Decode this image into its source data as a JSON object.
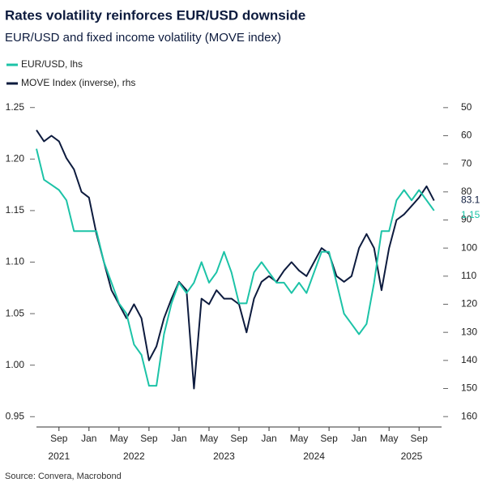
{
  "chart_data": {
    "type": "line",
    "title": "Rates volatility reinforces EUR/USD downside",
    "subtitle": "EUR/USD and fixed income volatility (MOVE index)",
    "source": "Source: Convera, Macrobond",
    "x": [
      "2021-06",
      "2021-07",
      "2021-08",
      "2021-09",
      "2021-10",
      "2021-11",
      "2021-12",
      "2022-01",
      "2022-02",
      "2022-03",
      "2022-04",
      "2022-05",
      "2022-06",
      "2022-07",
      "2022-08",
      "2022-09",
      "2022-10",
      "2022-11",
      "2022-12",
      "2023-01",
      "2023-02",
      "2023-03",
      "2023-04",
      "2023-05",
      "2023-06",
      "2023-07",
      "2023-08",
      "2023-09",
      "2023-10",
      "2023-11",
      "2023-12",
      "2024-01",
      "2024-02",
      "2024-03",
      "2024-04",
      "2024-05",
      "2024-06",
      "2024-07",
      "2024-08",
      "2024-09",
      "2024-10",
      "2024-11",
      "2024-12",
      "2025-01",
      "2025-02",
      "2025-03",
      "2025-04",
      "2025-05",
      "2025-06",
      "2025-07",
      "2025-08",
      "2025-09",
      "2025-10",
      "2025-11"
    ],
    "xlim": [
      "2021-06",
      "2025-12"
    ],
    "xticks": [
      {
        "value": "2021-09",
        "label": "Sep"
      },
      {
        "value": "2022-01",
        "label": "Jan"
      },
      {
        "value": "2022-05",
        "label": "May"
      },
      {
        "value": "2022-09",
        "label": "Sep"
      },
      {
        "value": "2023-01",
        "label": "Jan"
      },
      {
        "value": "2023-05",
        "label": "May"
      },
      {
        "value": "2023-09",
        "label": "Sep"
      },
      {
        "value": "2024-01",
        "label": "Jan"
      },
      {
        "value": "2024-05",
        "label": "May"
      },
      {
        "value": "2024-09",
        "label": "Sep"
      },
      {
        "value": "2025-01",
        "label": "Jan"
      },
      {
        "value": "2025-05",
        "label": "May"
      },
      {
        "value": "2025-09",
        "label": "Sep"
      }
    ],
    "year_labels": [
      {
        "value": "2021-09",
        "label": "2021"
      },
      {
        "value": "2022-07",
        "label": "2022"
      },
      {
        "value": "2023-07",
        "label": "2023"
      },
      {
        "value": "2024-07",
        "label": "2024"
      },
      {
        "value": "2025-08",
        "label": "2025"
      }
    ],
    "ylim": [
      0.94,
      1.26
    ],
    "yticks": [
      0.95,
      {
        "value": 1.0,
        "label": "1.00"
      },
      1.05,
      {
        "value": 1.1,
        "label": "1.10"
      },
      1.15,
      {
        "value": 1.2,
        "label": "1.20"
      },
      1.25
    ],
    "y2lim": [
      46.3,
      163.7
    ],
    "y2_inverted": true,
    "y2ticks": [
      50,
      60,
      70,
      80,
      90,
      100,
      110,
      120,
      130,
      140,
      150,
      160
    ],
    "legend": "top-left",
    "series": [
      {
        "name": "EUR/USD, lhs",
        "color": "#1cc3a7",
        "axis": "y",
        "values": [
          1.21,
          1.18,
          1.175,
          1.17,
          1.16,
          1.13,
          1.13,
          1.13,
          1.13,
          1.1,
          1.08,
          1.06,
          1.05,
          1.02,
          1.01,
          0.98,
          0.98,
          1.03,
          1.06,
          1.08,
          1.07,
          1.08,
          1.1,
          1.08,
          1.09,
          1.11,
          1.09,
          1.06,
          1.06,
          1.09,
          1.1,
          1.09,
          1.08,
          1.08,
          1.07,
          1.08,
          1.07,
          1.09,
          1.11,
          1.11,
          1.08,
          1.05,
          1.04,
          1.03,
          1.04,
          1.08,
          1.13,
          1.13,
          1.16,
          1.17,
          1.16,
          1.17,
          1.16,
          1.15
        ]
      },
      {
        "name": "MOVE Index (inverse), rhs",
        "color": "#0d1b3e",
        "axis": "y2",
        "values": [
          58,
          62,
          60,
          62,
          68,
          72,
          80,
          82,
          95,
          105,
          115,
          120,
          125,
          120,
          125,
          140,
          135,
          125,
          118,
          112,
          115,
          150,
          118,
          120,
          115,
          118,
          118,
          120,
          130,
          118,
          112,
          110,
          112,
          108,
          105,
          108,
          110,
          105,
          100,
          102,
          110,
          112,
          110,
          100,
          95,
          100,
          115,
          100,
          90,
          88,
          85,
          82,
          78,
          83.1
        ]
      }
    ]
  }
}
